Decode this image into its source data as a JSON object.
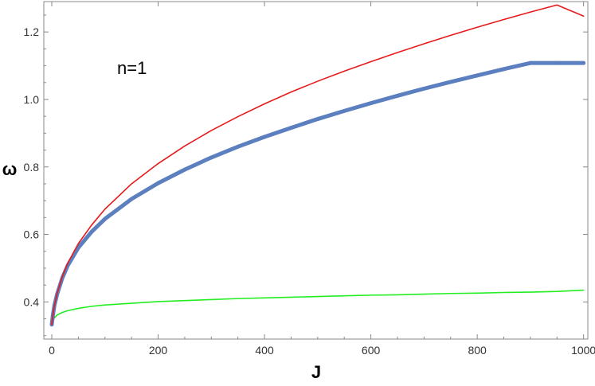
{
  "chart_data": {
    "type": "line",
    "xlabel": "J",
    "ylabel": "ω",
    "xlim": [
      -15,
      1008
    ],
    "ylim": [
      0.29,
      1.29
    ],
    "x_ticks": [
      0,
      200,
      400,
      600,
      800,
      1000
    ],
    "y_ticks": [
      0.4,
      0.6,
      0.8,
      1.0,
      1.2
    ],
    "x_tick_labels": [
      "0",
      "200",
      "400",
      "600",
      "800",
      "1000"
    ],
    "y_tick_labels": [
      "0.4",
      "0.6",
      "0.8",
      "1.0",
      "1.2"
    ],
    "annotation": "n=1",
    "grid": false,
    "legend": "none",
    "series": [
      {
        "color": "#e8191a",
        "style": "line",
        "x": [
          0,
          2,
          5,
          10,
          20,
          30,
          50,
          75,
          100,
          150,
          200,
          250,
          300,
          350,
          400,
          450,
          500,
          550,
          600,
          650,
          700,
          750,
          800,
          850,
          900,
          950,
          1000
        ],
        "values": [
          0.333,
          0.36,
          0.39,
          0.425,
          0.476,
          0.515,
          0.573,
          0.628,
          0.675,
          0.75,
          0.81,
          0.862,
          0.908,
          0.949,
          0.987,
          1.022,
          1.054,
          1.084,
          1.112,
          1.139,
          1.165,
          1.19,
          1.214,
          1.237,
          1.259,
          1.28,
          1.247
        ]
      },
      {
        "color": "#5b7fbf",
        "style": "thick-points",
        "x": [
          0,
          2,
          5,
          10,
          20,
          30,
          50,
          75,
          100,
          150,
          200,
          250,
          300,
          350,
          400,
          450,
          500,
          550,
          600,
          650,
          700,
          750,
          800,
          850,
          900,
          950,
          1000
        ],
        "values": [
          0.333,
          0.36,
          0.39,
          0.423,
          0.472,
          0.508,
          0.561,
          0.608,
          0.646,
          0.705,
          0.752,
          0.792,
          0.828,
          0.86,
          0.889,
          0.916,
          0.942,
          0.966,
          0.989,
          1.011,
          1.032,
          1.052,
          1.071,
          1.09,
          1.108,
          1.108,
          1.108
        ]
      },
      {
        "color": "#22ee22",
        "style": "line",
        "x": [
          0,
          2,
          5,
          10,
          20,
          30,
          50,
          75,
          100,
          150,
          200,
          250,
          300,
          350,
          400,
          450,
          500,
          550,
          600,
          650,
          700,
          750,
          800,
          850,
          900,
          950,
          1000
        ],
        "values": [
          0.333,
          0.345,
          0.353,
          0.361,
          0.369,
          0.374,
          0.381,
          0.387,
          0.391,
          0.396,
          0.401,
          0.404,
          0.407,
          0.41,
          0.412,
          0.414,
          0.416,
          0.418,
          0.42,
          0.421,
          0.423,
          0.425,
          0.426,
          0.428,
          0.429,
          0.431,
          0.435
        ]
      }
    ]
  }
}
